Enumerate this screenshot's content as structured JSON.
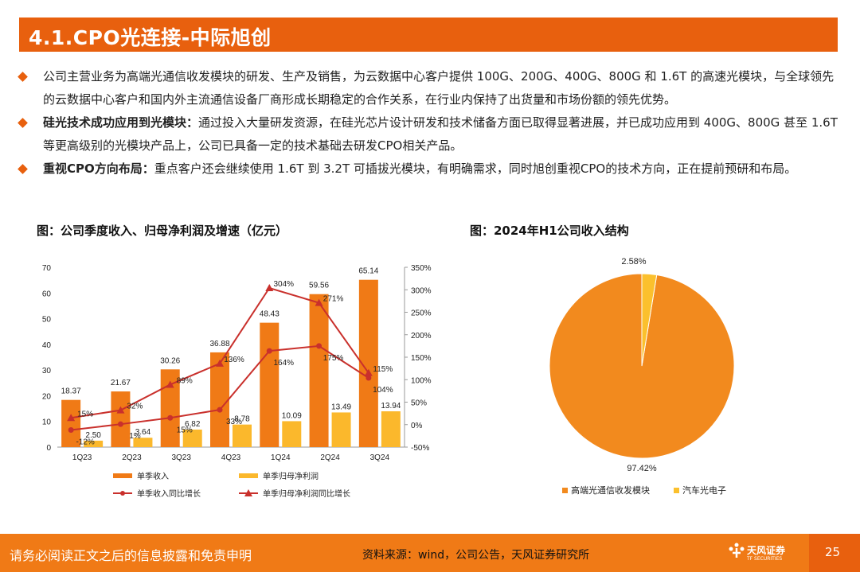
{
  "header": {
    "title": "4.1.CPO光连接-中际旭创"
  },
  "bullets": [
    {
      "bold": "",
      "text": "公司主营业务为高端光通信收发模块的研发、生产及销售，为云数据中心客户提供 100G、200G、400G、800G 和 1.6T 的高速光模块，与全球领先的云数据中心客户和国内外主流通信设备厂商形成长期稳定的合作关系，在行业内保持了出货量和市场份额的领先优势。"
    },
    {
      "bold": "硅光技术成功应用到光模块：",
      "text": "通过投入大量研发资源，在硅光芯片设计研发和技术储备方面已取得显著进展，并已成功应用到 400G、800G 甚至 1.6T 等更高级别的光模块产品上，公司已具备一定的技术基础去研发CPO相关产品。"
    },
    {
      "bold": "重视CPO方向布局：",
      "text": "重点客户还会继续使用 1.6T 到 3.2T 可插拔光模块，有明确需求，同时旭创重视CPO的技术方向，正在提前预研和布局。"
    }
  ],
  "figure1": {
    "title": "图：公司季度收入、归母净利润及增速（亿元）"
  },
  "figure2": {
    "title": "图：2024年H1公司收入结构"
  },
  "chart_data": [
    {
      "type": "bar",
      "categories": [
        "1Q23",
        "2Q23",
        "3Q23",
        "4Q23",
        "1Q24",
        "2Q24",
        "3Q24"
      ],
      "series": [
        {
          "name": "单季收入",
          "values": [
            18.37,
            21.67,
            30.26,
            36.88,
            48.43,
            59.56,
            65.14
          ],
          "labels": [
            "18.37",
            "21.67",
            "30.26",
            "36.88",
            "48.43",
            "59.56",
            "65.14"
          ],
          "color": "#F07A16"
        },
        {
          "name": "单季归母净利润",
          "values": [
            2.5,
            3.64,
            6.82,
            8.78,
            10.09,
            13.49,
            13.94
          ],
          "labels": [
            "2.50",
            "3.64",
            "6.82",
            "8.78",
            "10.09",
            "13.49",
            "13.94"
          ],
          "color": "#FBB82C"
        },
        {
          "name": "单季收入同比增长",
          "values": [
            -12,
            1,
            15,
            33,
            164,
            175,
            104
          ],
          "labels": [
            "-12%",
            "1%",
            "15%",
            "33%",
            "164%",
            "175%",
            "104%"
          ],
          "color": "#C9302C",
          "marker": "circle",
          "axis": "right"
        },
        {
          "name": "单季归母净利润同比增长",
          "values": [
            15,
            32,
            89,
            136,
            304,
            271,
            115
          ],
          "labels": [
            "15%",
            "32%",
            "89%",
            "136%",
            "304%",
            "271%",
            "115%"
          ],
          "color": "#C9302C",
          "marker": "triangle",
          "axis": "right"
        }
      ],
      "yleft": {
        "min": 0,
        "max": 70,
        "ticks": [
          "0",
          "10",
          "20",
          "30",
          "40",
          "50",
          "60",
          "70"
        ]
      },
      "yright": {
        "min": -50,
        "max": 350,
        "ticks": [
          "-50%",
          "0%",
          "50%",
          "100%",
          "150%",
          "200%",
          "250%",
          "300%",
          "350%"
        ]
      }
    },
    {
      "type": "pie",
      "labels": [
        "高端光通信收发模块",
        "汽车光电子"
      ],
      "values": [
        97.42,
        2.58
      ],
      "value_labels": [
        "97.42%",
        "2.58%"
      ],
      "colors": [
        "#F28A1E",
        "#FBC02D"
      ]
    }
  ],
  "footer": {
    "disclaimer": "请务必阅读正文之后的信息披露和免责申明",
    "source": "资料来源：wind，公司公告，天风证券研究所",
    "logo_text": "天风证券",
    "logo_sub": "TF SECURITIES",
    "page": "25"
  }
}
